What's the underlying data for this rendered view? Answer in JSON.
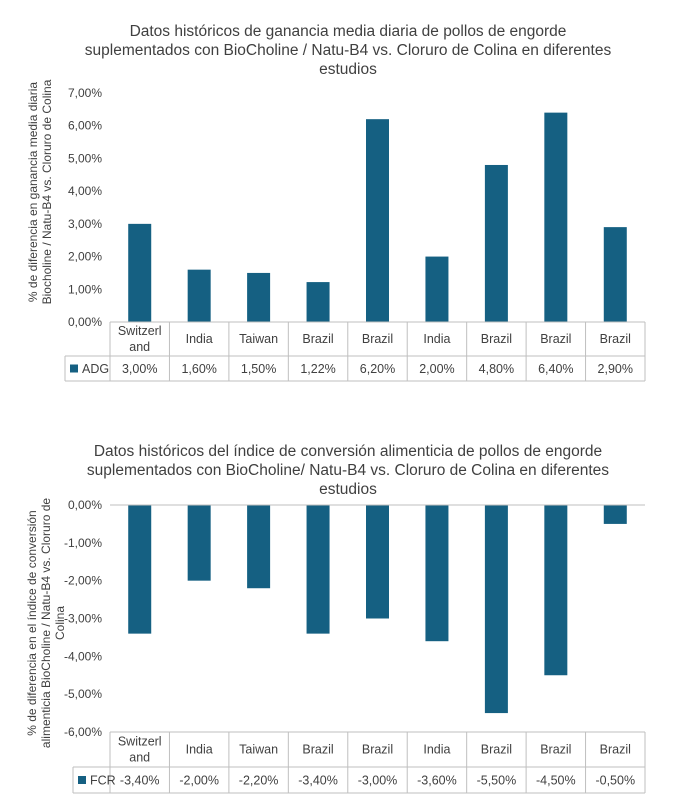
{
  "chart_data": [
    {
      "type": "bar",
      "title_lines": [
        "Datos históricos de ganancia media diaria de pollos de engorde",
        "suplementados con BioCholine / Natu-B4 vs. Cloruro de Colina en diferentes",
        "estudios"
      ],
      "ylabel_lines": [
        "% de diferencia en ganancia media diaria",
        "Biocholine / Natu-B4 vs. Cloruro de Colina"
      ],
      "categories": [
        [
          "Switzerl",
          "and"
        ],
        [
          "India"
        ],
        [
          "Taiwan"
        ],
        [
          "Brazil"
        ],
        [
          "Brazil"
        ],
        [
          "India"
        ],
        [
          "Brazil"
        ],
        [
          "Brazil"
        ],
        [
          "Brazil"
        ]
      ],
      "series": [
        {
          "name": "ADG",
          "color": "#156082",
          "values": [
            3.0,
            1.6,
            1.5,
            1.22,
            6.2,
            2.0,
            4.8,
            6.4,
            2.9
          ],
          "labels": [
            "3,00%",
            "1,60%",
            "1,50%",
            "1,22%",
            "6,20%",
            "2,00%",
            "4,80%",
            "6,40%",
            "2,90%"
          ]
        }
      ],
      "ylim": [
        0,
        7
      ],
      "yticks": [
        "0,00%",
        "1,00%",
        "2,00%",
        "3,00%",
        "4,00%",
        "5,00%",
        "6,00%",
        "7,00%"
      ],
      "legend": "data-table",
      "grid": false
    },
    {
      "type": "bar",
      "title_lines": [
        "Datos históricos del índice de conversión alimenticia de pollos de engorde",
        "suplementados con BioCholine/ Natu-B4 vs. Cloruro de Colina en diferentes",
        "estudios"
      ],
      "ylabel_lines": [
        "% de diferencia en el índice de conversión",
        "alimenticia BioCholine / Natu-B4 vs. Cloruro de",
        "Colina"
      ],
      "categories": [
        [
          "Switzerl",
          "and"
        ],
        [
          "India"
        ],
        [
          "Taiwan"
        ],
        [
          "Brazil"
        ],
        [
          "Brazil"
        ],
        [
          "India"
        ],
        [
          "Brazil"
        ],
        [
          "Brazil"
        ],
        [
          "Brazil"
        ]
      ],
      "series": [
        {
          "name": "FCR",
          "color": "#156082",
          "values": [
            -3.4,
            -2.0,
            -2.2,
            -3.4,
            -3.0,
            -3.6,
            -5.5,
            -4.5,
            -0.5
          ],
          "labels": [
            "-3,40%",
            "-2,00%",
            "-2,20%",
            "-3,40%",
            "-3,00%",
            "-3,60%",
            "-5,50%",
            "-4,50%",
            "-0,50%"
          ]
        }
      ],
      "ylim": [
        -6,
        0
      ],
      "yticks": [
        "0,00%",
        "-1,00%",
        "-2,00%",
        "-3,00%",
        "-4,00%",
        "-5,00%",
        "-6,00%"
      ],
      "legend": "data-table",
      "grid": false
    }
  ]
}
